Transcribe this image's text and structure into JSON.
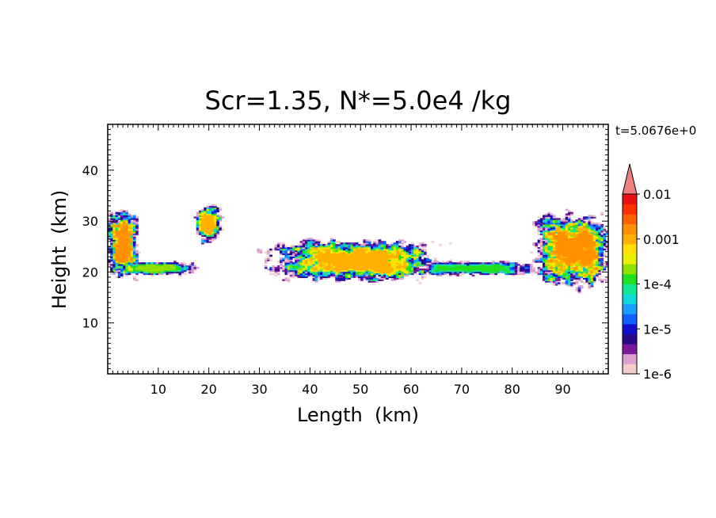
{
  "chart_data": {
    "type": "heatmap",
    "title": "Scr=1.35, N*=5.0e4 /kg",
    "time_label": "t=5.0676e+0",
    "xlabel": "Length  (km)",
    "ylabel": "Height  (km)",
    "xlim": [
      0,
      99
    ],
    "ylim": [
      0,
      49
    ],
    "x_ticks": [
      10,
      20,
      30,
      40,
      50,
      60,
      70,
      80,
      90
    ],
    "y_ticks": [
      10,
      20,
      30,
      40
    ],
    "colorbar": {
      "scale": "log",
      "range": [
        1e-06,
        0.01
      ],
      "tick_labels": [
        "0.01",
        "0.001",
        "1e-4",
        "1e-5",
        "1e-6"
      ],
      "tick_values": [
        0.01,
        0.001,
        0.0001,
        1e-05,
        1e-06
      ],
      "extend": "max",
      "colors": [
        "#f4cccc",
        "#d9a0d0",
        "#7a1a9a",
        "#2a0a8a",
        "#1010c8",
        "#1060ff",
        "#1aa0ff",
        "#10d8d8",
        "#10e890",
        "#20e020",
        "#90e000",
        "#e8f000",
        "#ffe000",
        "#ffb000",
        "#ff9000",
        "#ff6000",
        "#ff3000",
        "#e81010"
      ]
    },
    "regions": [
      {
        "name": "left-edge cloud",
        "x": [
          0,
          6
        ],
        "y": [
          19,
          32
        ],
        "max_level": 13
      },
      {
        "name": "left low layer",
        "x": [
          1,
          17
        ],
        "y": [
          19.5,
          22
        ],
        "max_level": 9
      },
      {
        "name": "turret near 20 km",
        "x": [
          17.5,
          22.5
        ],
        "y": [
          26,
          33
        ],
        "max_level": 12
      },
      {
        "name": "central cloud",
        "x": [
          33,
          65
        ],
        "y": [
          18.5,
          26
        ],
        "max_level": 12
      },
      {
        "name": "right low layer",
        "x": [
          60,
          84
        ],
        "y": [
          19.5,
          22
        ],
        "max_level": 8
      },
      {
        "name": "right-edge cloud",
        "x": [
          85,
          99
        ],
        "y": [
          17.5,
          31
        ],
        "max_level": 13
      }
    ]
  }
}
